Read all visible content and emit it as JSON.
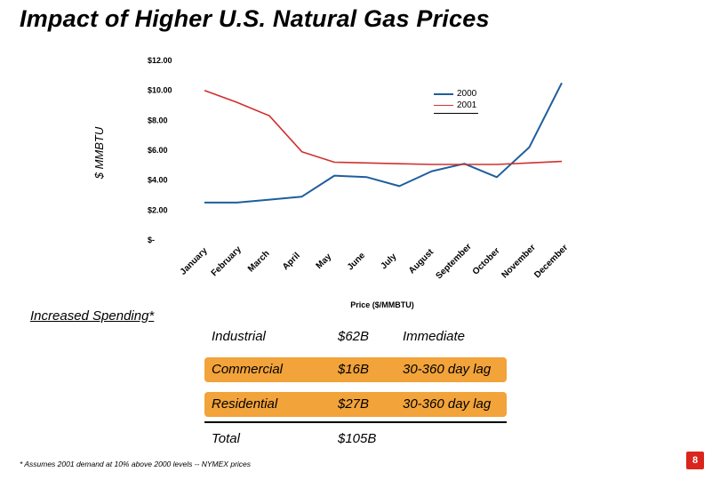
{
  "title": "Impact of Higher U.S. Natural Gas Prices",
  "chart_data": {
    "type": "line",
    "ylabel": "$ MMBTU",
    "xlabel": "Price ($/MMBTU)",
    "ylim": [
      0,
      12
    ],
    "y_ticks": [
      {
        "value": 12,
        "label": "$12.00"
      },
      {
        "value": 10,
        "label": "$10.00"
      },
      {
        "value": 8,
        "label": "$8.00"
      },
      {
        "value": 6,
        "label": "$6.00"
      },
      {
        "value": 4,
        "label": "$4.00"
      },
      {
        "value": 2,
        "label": "$2.00"
      },
      {
        "value": 0,
        "label": "$-"
      }
    ],
    "categories": [
      "January",
      "February",
      "March",
      "April",
      "May",
      "June",
      "July",
      "August",
      "September",
      "October",
      "November",
      "December"
    ],
    "series": [
      {
        "name": "2000",
        "color": "#1f5e9c",
        "values": [
          2.5,
          2.5,
          2.7,
          2.9,
          4.3,
          4.2,
          3.6,
          4.6,
          5.1,
          4.2,
          6.2,
          10.5
        ]
      },
      {
        "name": "2001",
        "color": "#d0312d",
        "values": [
          10.0,
          9.2,
          8.3,
          5.9,
          5.2,
          5.15,
          5.1,
          5.05,
          5.05,
          5.05,
          5.15,
          5.25
        ]
      }
    ]
  },
  "spending": {
    "heading": "Increased Spending*",
    "rows": [
      {
        "sector": "Industrial",
        "amount": "$62B",
        "timing": "Immediate",
        "highlight": false
      },
      {
        "sector": "Commercial",
        "amount": "$16B",
        "timing": "30-360 day lag",
        "highlight": true
      },
      {
        "sector": "Residential",
        "amount": "$27B",
        "timing": "30-360 day lag",
        "highlight": true
      },
      {
        "sector": "Total",
        "amount": "$105B",
        "timing": "",
        "highlight": false
      }
    ]
  },
  "footnote": "* Assumes 2001 demand at 10% above 2000 levels -- NYMEX prices",
  "page_number": "8"
}
